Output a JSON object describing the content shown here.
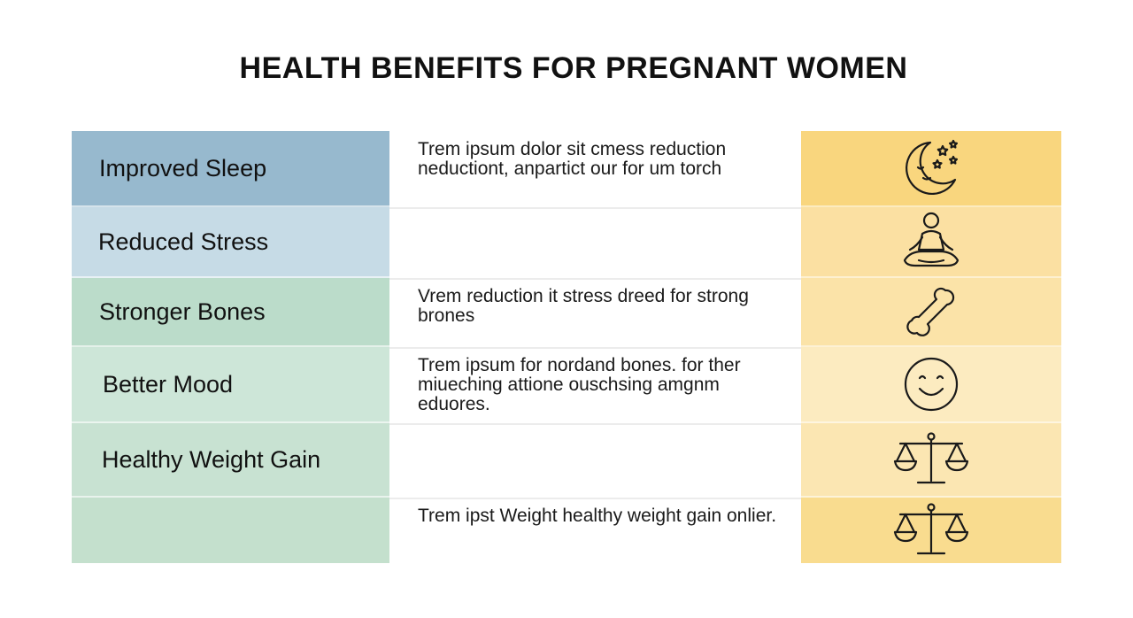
{
  "title": "HEALTH BENEFITS FOR PREGNANT WOMEN",
  "rows": [
    {
      "label": "Improved Sleep",
      "description": "Trem ipsum dolor sit cmess reduction neductiont, anpartict our for um torch",
      "icon": "moon-stars-icon",
      "label_bg": "#97b9ce",
      "icon_bg": "#f9d67e"
    },
    {
      "label": "Reduced Stress",
      "description": "",
      "icon": "meditation-icon",
      "label_bg": "#c6dbe6",
      "icon_bg": "#fbe0a2"
    },
    {
      "label": "Stronger Bones",
      "description": "Vrem reduction it stress dreed for strong brones",
      "icon": "bone-icon",
      "label_bg": "#bbdcca",
      "icon_bg": "#fbe3a8"
    },
    {
      "label": "Better Mood",
      "description": "Trem ipsum for nordand bones. for ther miueching attione ouschsing amgnm eduores.",
      "icon": "smiley-face-icon",
      "label_bg": "#cde6d8",
      "icon_bg": "#fcebc0"
    },
    {
      "label": "Healthy Weight Gain",
      "description": "",
      "icon": "balance-scale-icon",
      "label_bg": "#c8e2d2",
      "icon_bg": "#fbe6b2"
    },
    {
      "label": "",
      "description": "Trem ipst Weight healthy weight gain onlier.",
      "icon": "balance-scale-icon",
      "label_bg": "#c4e0cd",
      "icon_bg": "#f9dc8f"
    }
  ]
}
